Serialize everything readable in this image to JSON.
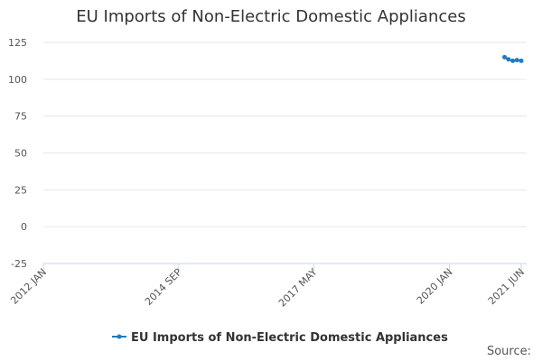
{
  "chart_data": {
    "type": "line",
    "title": "EU Imports of Non-Electric Domestic Appliances",
    "x": [
      "2021 FEB",
      "2021 MAR",
      "2021 APR",
      "2021 MAY",
      "2021 JUN"
    ],
    "series": [
      {
        "name": "EU Imports of Non-Electric Domestic Appliances",
        "color": "#1f7bbf",
        "values": [
          115,
          113.5,
          112.5,
          113,
          112.5
        ]
      }
    ],
    "xlim": [
      "2012 JAN",
      "2021 JUN"
    ],
    "xticks": [
      "2012 JAN",
      "2014 SEP",
      "2017 MAY",
      "2020 JAN",
      "2021 JUN"
    ],
    "ylim": [
      -25,
      125
    ],
    "yticks": [
      -25,
      0,
      25,
      50,
      75,
      100,
      125
    ],
    "grid": true,
    "legend": "bottom",
    "source": "Source:"
  }
}
